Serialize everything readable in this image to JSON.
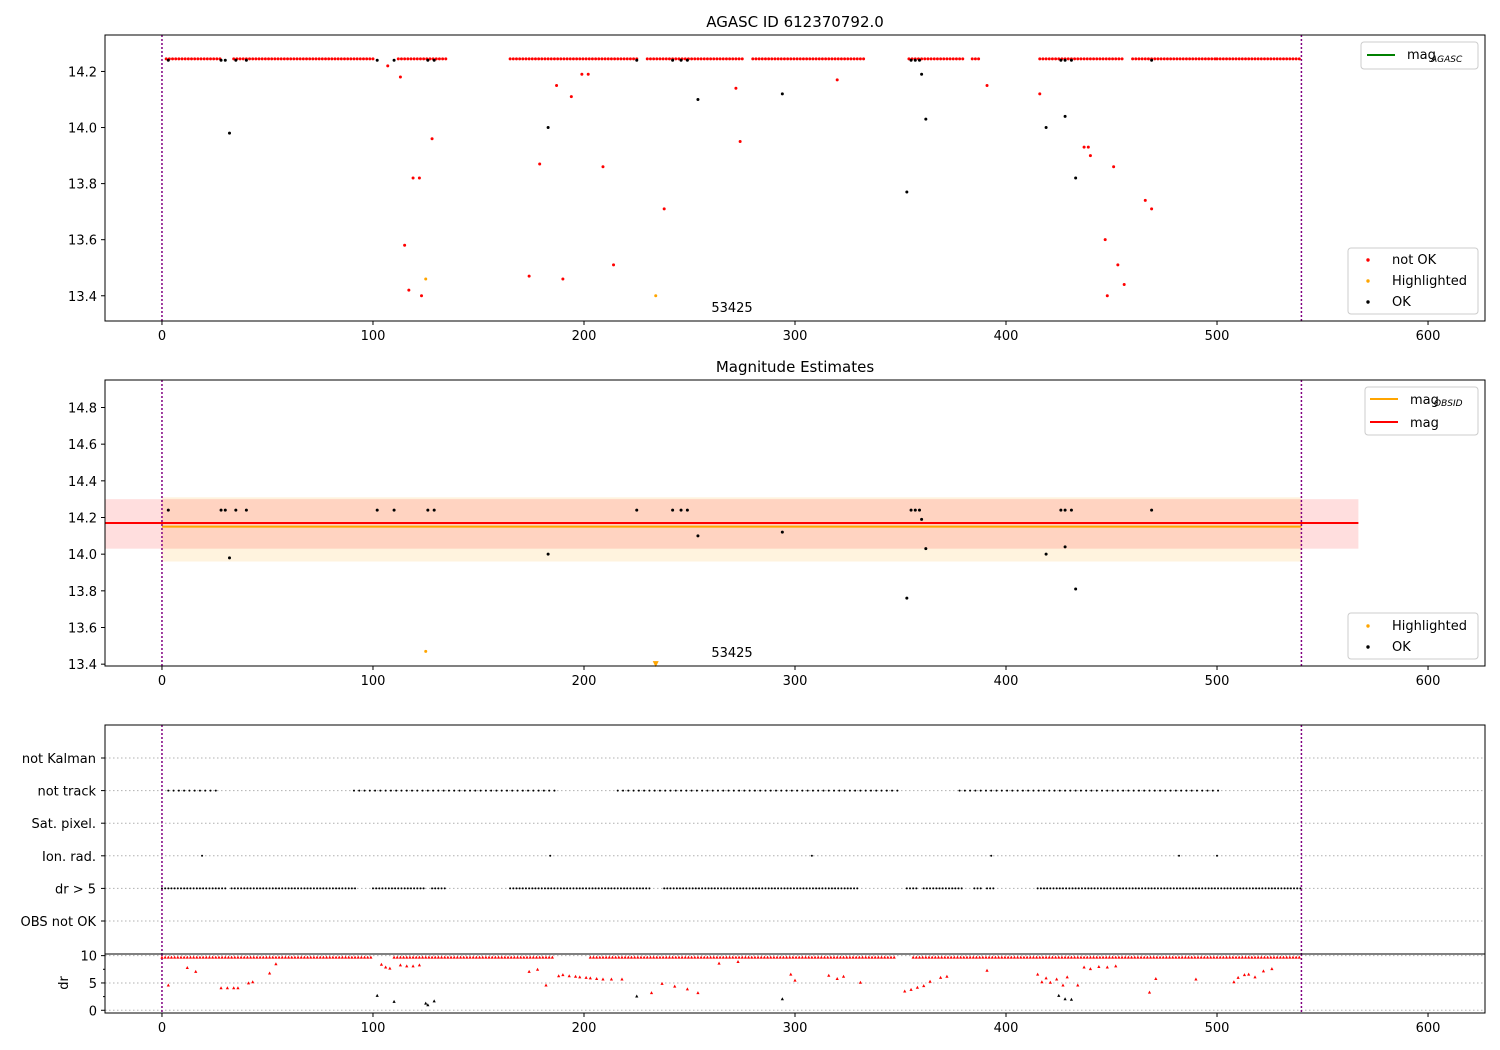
{
  "figure": {
    "background": "#ffffff"
  },
  "colors": {
    "not_ok": "#ff0000",
    "ok": "#000000",
    "highlighted": "#ffa500",
    "mag_agasc": "#008000",
    "mag_obsid": "#ffa500",
    "mag": "#ff0000",
    "vline": "#800080",
    "grid": "#b0b0b0"
  },
  "chart_data": [
    {
      "type": "scatter",
      "title": "AGASC ID 612370792.0",
      "annotation": "53425",
      "xlim": [
        -27,
        627
      ],
      "ylim": [
        13.31,
        14.33
      ],
      "xticks": [
        0,
        100,
        200,
        300,
        400,
        500,
        600
      ],
      "yticks": [
        13.4,
        13.6,
        13.8,
        14.0,
        14.2
      ],
      "vlines": [
        0,
        540
      ],
      "lines": [
        {
          "name": "mag_AGASC",
          "y": 14.24,
          "x": [
            0,
            540
          ],
          "color": "#008000",
          "visible": false
        }
      ],
      "legend_upper": [
        {
          "label": "mag",
          "sub": "AGASC",
          "color": "#008000"
        }
      ],
      "legend_lower": [
        "not OK",
        "Highlighted",
        "OK"
      ],
      "series": [
        {
          "name": "not OK",
          "color": "#ff0000",
          "baseline": {
            "y": 14.245,
            "segments": [
              [
                2,
                28
              ],
              [
                34,
                100
              ],
              [
                112,
                135
              ],
              [
                165,
                225
              ],
              [
                230,
                275
              ],
              [
                280,
                333
              ],
              [
                354,
                380
              ],
              [
                384,
                387
              ],
              [
                416,
                455
              ],
              [
                460,
                500
              ],
              [
                500,
                540
              ]
            ],
            "step": 1.5
          },
          "points": [
            [
              107,
              14.22
            ],
            [
              113,
              14.18
            ],
            [
              115,
              13.58
            ],
            [
              117,
              13.42
            ],
            [
              119,
              13.82
            ],
            [
              122,
              13.82
            ],
            [
              123,
              13.4
            ],
            [
              128,
              13.96
            ],
            [
              174,
              13.47
            ],
            [
              179,
              13.87
            ],
            [
              187,
              14.15
            ],
            [
              190,
              13.46
            ],
            [
              194,
              14.11
            ],
            [
              199,
              14.19
            ],
            [
              202,
              14.19
            ],
            [
              209,
              13.86
            ],
            [
              214,
              13.51
            ],
            [
              238,
              13.71
            ],
            [
              272,
              14.14
            ],
            [
              274,
              13.95
            ],
            [
              320,
              14.17
            ],
            [
              391,
              14.15
            ],
            [
              416,
              14.12
            ],
            [
              437,
              13.93
            ],
            [
              439,
              13.93
            ],
            [
              440,
              13.9
            ],
            [
              447,
              13.6
            ],
            [
              448,
              13.4
            ],
            [
              451,
              13.86
            ],
            [
              453,
              13.51
            ],
            [
              456,
              13.44
            ],
            [
              466,
              13.74
            ],
            [
              469,
              13.71
            ]
          ]
        },
        {
          "name": "Highlighted",
          "color": "#ffa500",
          "points": [
            [
              125,
              13.46
            ],
            [
              234,
              13.4
            ]
          ]
        },
        {
          "name": "OK",
          "color": "#000000",
          "points": [
            [
              3,
              14.24
            ],
            [
              28,
              14.24
            ],
            [
              30,
              14.24
            ],
            [
              32,
              13.98
            ],
            [
              35,
              14.24
            ],
            [
              40,
              14.24
            ],
            [
              102,
              14.24
            ],
            [
              110,
              14.24
            ],
            [
              126,
              14.24
            ],
            [
              129,
              14.24
            ],
            [
              183,
              14.0
            ],
            [
              225,
              14.24
            ],
            [
              242,
              14.24
            ],
            [
              246,
              14.24
            ],
            [
              249,
              14.24
            ],
            [
              254,
              14.1
            ],
            [
              294,
              14.12
            ],
            [
              353,
              13.77
            ],
            [
              355,
              14.24
            ],
            [
              357,
              14.24
            ],
            [
              359,
              14.24
            ],
            [
              360,
              14.19
            ],
            [
              362,
              14.03
            ],
            [
              419,
              14.0
            ],
            [
              426,
              14.24
            ],
            [
              428,
              14.24
            ],
            [
              428,
              14.04
            ],
            [
              431,
              14.24
            ],
            [
              433,
              13.82
            ],
            [
              469,
              14.24
            ]
          ]
        }
      ]
    },
    {
      "type": "scatter",
      "title": "Magnitude Estimates",
      "annotation": "53425",
      "xlim": [
        -27,
        627
      ],
      "ylim": [
        13.39,
        14.95
      ],
      "xticks": [
        0,
        100,
        200,
        300,
        400,
        500,
        600
      ],
      "yticks": [
        13.4,
        13.6,
        13.8,
        14.0,
        14.2,
        14.4,
        14.6,
        14.8
      ],
      "vlines": [
        0,
        540
      ],
      "lines": [
        {
          "name": "mag_OBSID",
          "y": 14.15,
          "x": [
            0,
            540
          ],
          "band": [
            13.96,
            14.31
          ],
          "color": "#ffa500"
        },
        {
          "name": "mag",
          "y": 14.17,
          "x": [
            -27,
            567
          ],
          "band": [
            14.03,
            14.3
          ],
          "color": "#ff0000"
        }
      ],
      "legend_upper": [
        {
          "label": "mag",
          "sub": "OBSID",
          "color": "#ffa500"
        },
        {
          "label": "mag",
          "sub": "",
          "color": "#ff0000"
        }
      ],
      "legend_lower": [
        "Highlighted",
        "OK"
      ],
      "series": [
        {
          "name": "Highlighted",
          "color": "#ffa500",
          "points": [
            [
              125,
              13.47
            ]
          ],
          "triangles": [
            [
              234,
              13.4
            ]
          ]
        },
        {
          "name": "OK",
          "color": "#000000",
          "points": [
            [
              3,
              14.24
            ],
            [
              28,
              14.24
            ],
            [
              30,
              14.24
            ],
            [
              32,
              13.98
            ],
            [
              35,
              14.24
            ],
            [
              40,
              14.24
            ],
            [
              102,
              14.24
            ],
            [
              110,
              14.24
            ],
            [
              126,
              14.24
            ],
            [
              129,
              14.24
            ],
            [
              183,
              14.0
            ],
            [
              225,
              14.24
            ],
            [
              242,
              14.24
            ],
            [
              246,
              14.24
            ],
            [
              249,
              14.24
            ],
            [
              254,
              14.1
            ],
            [
              294,
              14.12
            ],
            [
              353,
              13.76
            ],
            [
              355,
              14.24
            ],
            [
              357,
              14.24
            ],
            [
              359,
              14.24
            ],
            [
              360,
              14.19
            ],
            [
              362,
              14.03
            ],
            [
              419,
              14.0
            ],
            [
              426,
              14.24
            ],
            [
              428,
              14.24
            ],
            [
              428,
              14.04
            ],
            [
              431,
              14.24
            ],
            [
              433,
              13.81
            ],
            [
              469,
              14.24
            ]
          ]
        }
      ]
    },
    {
      "type": "scatter",
      "title": "",
      "xlim": [
        -27,
        627
      ],
      "categories": [
        "not Kalman",
        "not track",
        "Sat. pixel.",
        "Ion. rad.",
        "dr > 5",
        "OBS not OK"
      ],
      "vlines": [
        0,
        540
      ],
      "flags": {
        "not track": {
          "color": "#000000",
          "segments": [
            [
              3,
              27
            ],
            [
              91,
              187
            ],
            [
              216,
              350
            ],
            [
              378,
              501
            ]
          ],
          "step": 2.5
        },
        "Ion. rad.": {
          "color": "#000000",
          "points": [
            19,
            184,
            308,
            393,
            482,
            500
          ]
        },
        "dr > 5": {
          "color": "#000000",
          "segments": [
            [
              0,
              30
            ],
            [
              33,
              92
            ],
            [
              100,
              124
            ],
            [
              128,
              135
            ],
            [
              165,
              232
            ],
            [
              238,
              330
            ],
            [
              353,
              358
            ],
            [
              361,
              379
            ],
            [
              385,
              388
            ],
            [
              391,
              394
            ],
            [
              415,
              540
            ]
          ],
          "step": 1.5
        }
      }
    },
    {
      "type": "scatter",
      "title": "",
      "ylabel": "dr",
      "xlim": [
        -27,
        627
      ],
      "ylim": [
        -0.5,
        10.3
      ],
      "xticks": [
        0,
        100,
        200,
        300,
        400,
        500,
        600
      ],
      "yticks": [
        0,
        5,
        10
      ],
      "vlines": [
        0,
        540
      ],
      "series": [
        {
          "name": "dr not OK",
          "color": "#ff0000",
          "baseline": {
            "y": 9.7,
            "segments": [
              [
                0,
                100
              ],
              [
                110,
                186
              ],
              [
                203,
                348
              ],
              [
                356,
                540
              ]
            ],
            "step": 1.5
          },
          "points": [
            [
              3,
              4.6
            ],
            [
              12,
              7.8
            ],
            [
              16,
              7.1
            ],
            [
              28,
              4.1
            ],
            [
              31,
              4.1
            ],
            [
              34,
              4.1
            ],
            [
              36,
              4.1
            ],
            [
              41,
              5.0
            ],
            [
              43,
              5.2
            ],
            [
              51,
              6.8
            ],
            [
              54,
              8.5
            ],
            [
              104,
              8.4
            ],
            [
              106,
              7.9
            ],
            [
              108,
              7.7
            ],
            [
              113,
              8.3
            ],
            [
              116,
              8.1
            ],
            [
              119,
              8.1
            ],
            [
              122,
              8.3
            ],
            [
              174,
              7.1
            ],
            [
              178,
              7.5
            ],
            [
              182,
              4.6
            ],
            [
              188,
              6.3
            ],
            [
              190,
              6.5
            ],
            [
              193,
              6.3
            ],
            [
              196,
              6.2
            ],
            [
              198,
              6.1
            ],
            [
              201,
              6.0
            ],
            [
              203,
              5.9
            ],
            [
              206,
              5.8
            ],
            [
              209,
              5.7
            ],
            [
              213,
              5.7
            ],
            [
              218,
              5.7
            ],
            [
              232,
              3.2
            ],
            [
              237,
              4.9
            ],
            [
              243,
              4.4
            ],
            [
              249,
              3.9
            ],
            [
              254,
              3.2
            ],
            [
              264,
              8.6
            ],
            [
              273,
              8.9
            ],
            [
              298,
              6.6
            ],
            [
              300,
              5.5
            ],
            [
              316,
              6.4
            ],
            [
              320,
              5.8
            ],
            [
              323,
              6.2
            ],
            [
              331,
              5.1
            ],
            [
              352,
              3.5
            ],
            [
              355,
              3.8
            ],
            [
              358,
              4.2
            ],
            [
              361,
              4.5
            ],
            [
              364,
              5.3
            ],
            [
              369,
              6.0
            ],
            [
              372,
              6.2
            ],
            [
              391,
              7.3
            ],
            [
              415,
              6.6
            ],
            [
              417,
              5.2
            ],
            [
              419,
              5.9
            ],
            [
              421,
              5.1
            ],
            [
              424,
              5.7
            ],
            [
              427,
              4.6
            ],
            [
              429,
              6.1
            ],
            [
              434,
              4.6
            ],
            [
              437,
              7.9
            ],
            [
              440,
              7.6
            ],
            [
              444,
              8.0
            ],
            [
              448,
              7.9
            ],
            [
              452,
              8.1
            ],
            [
              468,
              3.3
            ],
            [
              471,
              5.8
            ],
            [
              490,
              5.7
            ],
            [
              508,
              5.2
            ],
            [
              510,
              6.0
            ],
            [
              513,
              6.5
            ],
            [
              515,
              6.6
            ],
            [
              518,
              6.1
            ],
            [
              522,
              7.2
            ],
            [
              526,
              7.6
            ]
          ]
        },
        {
          "name": "dr OK",
          "color": "#000000",
          "points": [
            [
              102,
              2.7
            ],
            [
              110,
              1.6
            ],
            [
              125,
              1.3
            ],
            [
              126,
              1.0
            ],
            [
              129,
              1.7
            ],
            [
              225,
              2.6
            ],
            [
              294,
              2.1
            ],
            [
              425,
              2.7
            ],
            [
              428,
              2.1
            ],
            [
              431,
              2.0
            ]
          ]
        }
      ]
    }
  ]
}
